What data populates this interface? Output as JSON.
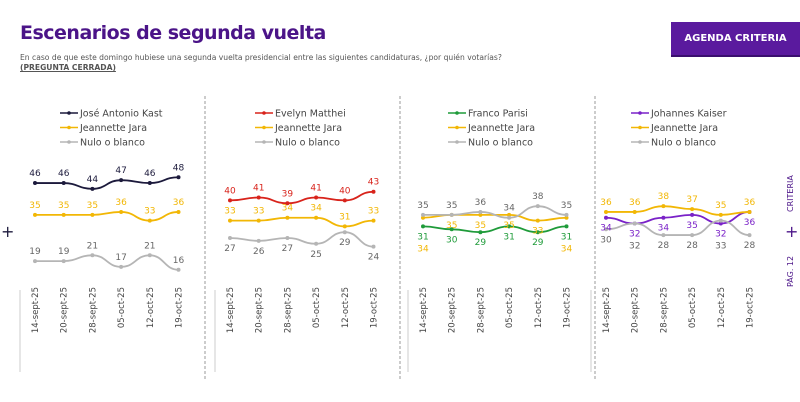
{
  "header": {
    "title": "Escenarios de segunda vuelta",
    "subtitle": "En caso de que este domingo hubiese una segunda vuelta presidencial entre las siguientes candidaturas, ¿por quién votarías?",
    "note": "(PREGUNTA CERRADA)",
    "button": "AGENDA CRITERIA"
  },
  "side": {
    "brand": "CRITERIA",
    "page": "PÁG. 12",
    "plus": "+"
  },
  "chart_data": [
    {
      "type": "line",
      "categories": [
        "14-sept-25",
        "20-sept-25",
        "28-sept-25",
        "05-oct-25",
        "12-oct-25",
        "19-oct-25"
      ],
      "series": [
        {
          "name": "José Antonio Kast",
          "color": "#1c1a3c",
          "values": [
            46,
            46,
            44,
            47,
            46,
            48
          ],
          "label": "above"
        },
        {
          "name": "Jeannette Jara",
          "color": "#f2b705",
          "values": [
            35,
            35,
            35,
            36,
            33,
            36
          ],
          "label": "above"
        },
        {
          "name": "Nulo o blanco",
          "color": "#b5b5b5",
          "values": [
            19,
            19,
            21,
            17,
            21,
            16
          ],
          "label": "above"
        }
      ]
    },
    {
      "type": "line",
      "categories": [
        "14-sept-25",
        "20-sept-25",
        "28-sept-25",
        "05-oct-25",
        "12-oct-25",
        "19-oct-25"
      ],
      "series": [
        {
          "name": "Evelyn Matthei",
          "color": "#d8231b",
          "values": [
            40,
            41,
            39,
            41,
            40,
            43
          ],
          "label": "above"
        },
        {
          "name": "Jeannette Jara",
          "color": "#f2b705",
          "values": [
            33,
            33,
            34,
            34,
            31,
            33
          ],
          "label": "above"
        },
        {
          "name": "Nulo o blanco",
          "color": "#b5b5b5",
          "values": [
            27,
            26,
            27,
            25,
            29,
            24
          ],
          "label": "below"
        }
      ]
    },
    {
      "type": "line",
      "categories": [
        "14-sept-25",
        "20-sept-25",
        "28-sept-25",
        "05-oct-25",
        "12-oct-25",
        "19-oct-25"
      ],
      "series": [
        {
          "name": "Franco Parisi",
          "color": "#1f9b3a",
          "values": [
            31,
            30,
            29,
            31,
            29,
            31
          ],
          "label": "below"
        },
        {
          "name": "Jeannette Jara",
          "color": "#f2b705",
          "values": [
            34,
            35,
            35,
            35,
            33,
            34
          ],
          "label": "below"
        },
        {
          "name": "Nulo o blanco",
          "color": "#b5b5b5",
          "values": [
            35,
            35,
            36,
            34,
            38,
            35
          ],
          "label": "above"
        }
      ]
    },
    {
      "type": "line",
      "categories": [
        "14-sept-25",
        "20-sept-25",
        "28-sept-25",
        "05-oct-25",
        "12-oct-25",
        "19-oct-25"
      ],
      "series": [
        {
          "name": "Johannes Kaiser",
          "color": "#7a22c8",
          "values": [
            34,
            32,
            34,
            35,
            32,
            36
          ],
          "label": "below"
        },
        {
          "name": "Jeannette Jara",
          "color": "#f2b705",
          "values": [
            36,
            36,
            38,
            37,
            35,
            36
          ],
          "label": "above"
        },
        {
          "name": "Nulo o blanco",
          "color": "#b5b5b5",
          "values": [
            30,
            32,
            28,
            28,
            33,
            28
          ],
          "label": "below"
        }
      ]
    }
  ]
}
